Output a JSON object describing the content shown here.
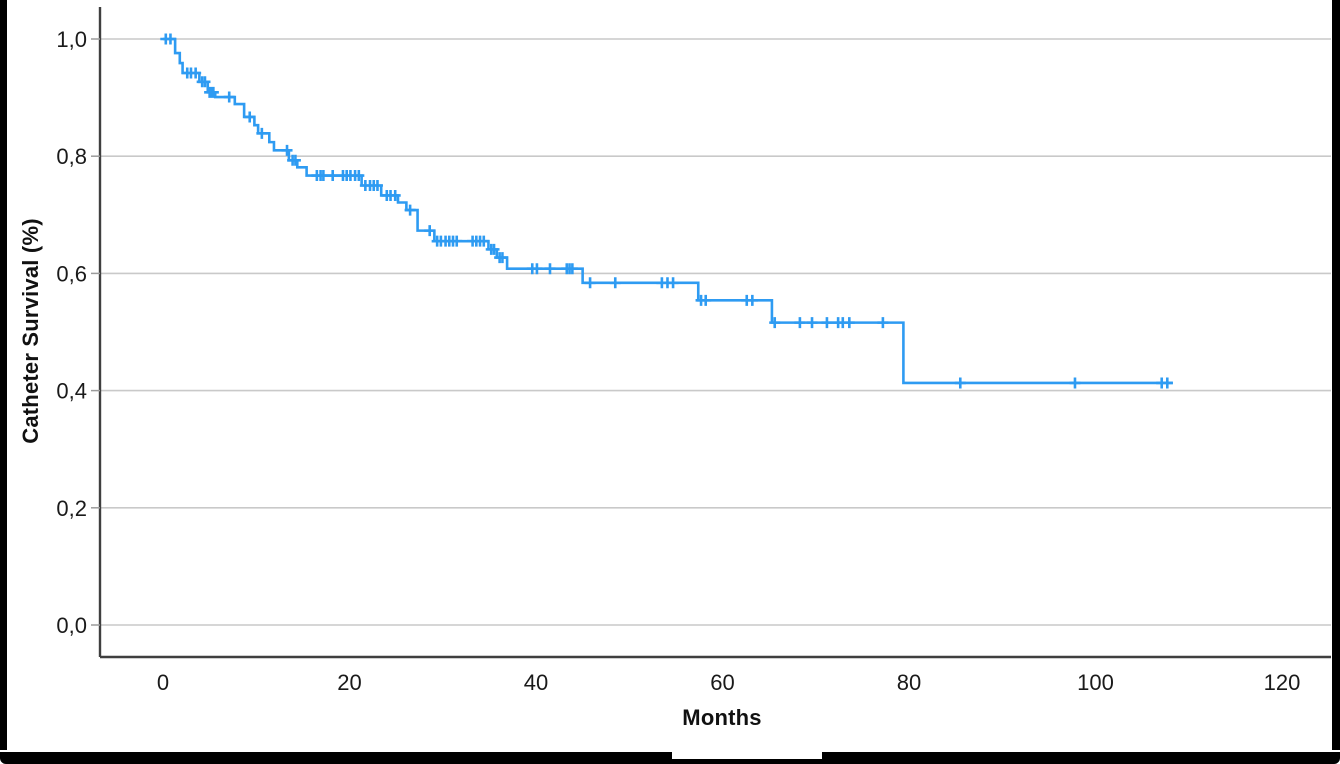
{
  "chart_data": {
    "type": "line",
    "variant": "kaplan_meier_step",
    "title": "",
    "xlabel": "Months",
    "ylabel": "Catheter Survival (%)",
    "legend": "none",
    "grid": "horizontal_only",
    "x_range": [
      0,
      120
    ],
    "y_range": [
      0.0,
      1.0
    ],
    "x_ticks": [
      {
        "value": 0,
        "label": "0"
      },
      {
        "value": 20,
        "label": "20"
      },
      {
        "value": 40,
        "label": "40"
      },
      {
        "value": 60,
        "label": "60"
      },
      {
        "value": 80,
        "label": "80"
      },
      {
        "value": 100,
        "label": "100"
      },
      {
        "value": 120,
        "label": "120"
      }
    ],
    "y_ticks": [
      {
        "value": 0.0,
        "label": "0,0"
      },
      {
        "value": 0.2,
        "label": "0,2"
      },
      {
        "value": 0.4,
        "label": "0,4"
      },
      {
        "value": 0.6,
        "label": "0,6"
      },
      {
        "value": 0.8,
        "label": "0,8"
      },
      {
        "value": 1.0,
        "label": "1,0"
      }
    ],
    "colors": {
      "line": "#2E9BF2",
      "grid": "#C9C9C9",
      "axis": "#3F3F3F",
      "tick": "#9B9B9B",
      "text": "#1A1A1A",
      "frame": "#000000"
    },
    "series": [
      {
        "name": "Catheter survival",
        "color": "#2E9BF2",
        "end_time": 108.3,
        "steps": [
          [
            0.0,
            1.0
          ],
          [
            1.3,
            0.976
          ],
          [
            1.8,
            0.959
          ],
          [
            2.1,
            0.942
          ],
          [
            3.9,
            0.927
          ],
          [
            4.8,
            0.909
          ],
          [
            5.6,
            0.901
          ],
          [
            7.7,
            0.889
          ],
          [
            8.7,
            0.867
          ],
          [
            9.8,
            0.853
          ],
          [
            10.2,
            0.839
          ],
          [
            11.4,
            0.824
          ],
          [
            11.9,
            0.81
          ],
          [
            13.5,
            0.793
          ],
          [
            14.4,
            0.781
          ],
          [
            15.4,
            0.767
          ],
          [
            21.3,
            0.75
          ],
          [
            23.4,
            0.733
          ],
          [
            25.2,
            0.721
          ],
          [
            26.1,
            0.708
          ],
          [
            27.3,
            0.673
          ],
          [
            29.1,
            0.655
          ],
          [
            34.9,
            0.641
          ],
          [
            35.8,
            0.627
          ],
          [
            36.9,
            0.608
          ],
          [
            45.0,
            0.584
          ],
          [
            57.4,
            0.554
          ],
          [
            65.3,
            0.516
          ],
          [
            79.4,
            0.413
          ]
        ],
        "censor_marks": [
          [
            0.3,
            1.0
          ],
          [
            0.8,
            1.0
          ],
          [
            2.6,
            0.942
          ],
          [
            3.0,
            0.942
          ],
          [
            3.5,
            0.942
          ],
          [
            4.2,
            0.927
          ],
          [
            4.5,
            0.927
          ],
          [
            5.0,
            0.909
          ],
          [
            5.2,
            0.909
          ],
          [
            5.4,
            0.909
          ],
          [
            7.1,
            0.901
          ],
          [
            9.3,
            0.867
          ],
          [
            10.6,
            0.839
          ],
          [
            13.3,
            0.81
          ],
          [
            13.9,
            0.793
          ],
          [
            14.2,
            0.793
          ],
          [
            16.5,
            0.767
          ],
          [
            16.9,
            0.767
          ],
          [
            17.2,
            0.767
          ],
          [
            18.2,
            0.767
          ],
          [
            19.3,
            0.767
          ],
          [
            19.7,
            0.767
          ],
          [
            20.1,
            0.767
          ],
          [
            20.6,
            0.767
          ],
          [
            21.0,
            0.767
          ],
          [
            21.7,
            0.75
          ],
          [
            22.2,
            0.75
          ],
          [
            22.6,
            0.75
          ],
          [
            23.0,
            0.75
          ],
          [
            24.0,
            0.733
          ],
          [
            24.4,
            0.733
          ],
          [
            24.9,
            0.733
          ],
          [
            26.5,
            0.708
          ],
          [
            28.6,
            0.673
          ],
          [
            29.4,
            0.655
          ],
          [
            29.8,
            0.655
          ],
          [
            30.3,
            0.655
          ],
          [
            30.7,
            0.655
          ],
          [
            31.1,
            0.655
          ],
          [
            31.5,
            0.655
          ],
          [
            33.2,
            0.655
          ],
          [
            33.6,
            0.655
          ],
          [
            34.0,
            0.655
          ],
          [
            34.4,
            0.655
          ],
          [
            35.2,
            0.641
          ],
          [
            35.5,
            0.641
          ],
          [
            36.1,
            0.627
          ],
          [
            36.4,
            0.627
          ],
          [
            39.6,
            0.608
          ],
          [
            40.1,
            0.608
          ],
          [
            41.5,
            0.608
          ],
          [
            43.3,
            0.608
          ],
          [
            43.6,
            0.608
          ],
          [
            43.9,
            0.608
          ],
          [
            45.8,
            0.584
          ],
          [
            48.5,
            0.584
          ],
          [
            53.5,
            0.584
          ],
          [
            54.1,
            0.584
          ],
          [
            54.7,
            0.584
          ],
          [
            57.7,
            0.554
          ],
          [
            58.2,
            0.554
          ],
          [
            62.6,
            0.554
          ],
          [
            63.2,
            0.554
          ],
          [
            65.6,
            0.516
          ],
          [
            68.3,
            0.516
          ],
          [
            69.6,
            0.516
          ],
          [
            71.2,
            0.516
          ],
          [
            72.4,
            0.516
          ],
          [
            72.9,
            0.516
          ],
          [
            73.6,
            0.516
          ],
          [
            77.2,
            0.516
          ],
          [
            85.5,
            0.413
          ],
          [
            97.8,
            0.413
          ],
          [
            107.1,
            0.413
          ],
          [
            107.7,
            0.413
          ]
        ]
      }
    ]
  }
}
